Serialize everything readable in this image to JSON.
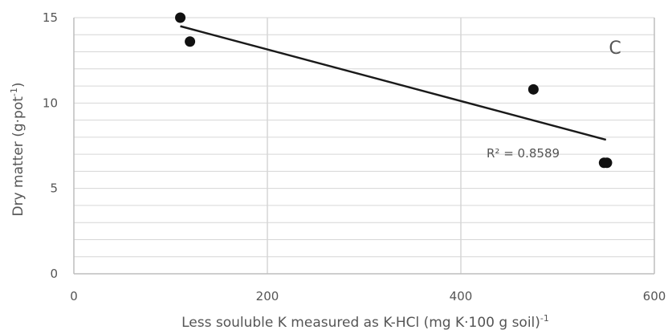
{
  "chart_data": {
    "type": "scatter",
    "panel_label": "C",
    "xlabel": "Less souluble K measured as K-HCl (mg K·100 g soil)",
    "xlabel_sup": "-1",
    "ylabel": "Dry matter (g·pot",
    "ylabel_sup": "-1",
    "ylabel_close": ")",
    "xlim": [
      0,
      600
    ],
    "ylim": [
      0,
      15
    ],
    "x_ticks": [
      0,
      200,
      400,
      600
    ],
    "y_ticks": [
      0,
      5,
      10,
      15
    ],
    "x_tick_labels": [
      "0",
      "200",
      "400",
      "600"
    ],
    "y_tick_labels": [
      "0",
      "5",
      "10",
      "15"
    ],
    "points": [
      {
        "x": 110,
        "y": 15.0
      },
      {
        "x": 120,
        "y": 13.6
      },
      {
        "x": 475,
        "y": 10.8
      },
      {
        "x": 548,
        "y": 6.5
      },
      {
        "x": 551,
        "y": 6.5
      }
    ],
    "trendline": {
      "x": [
        110,
        550
      ],
      "y": [
        14.5,
        7.85
      ]
    },
    "r2_label": "R² = 0.8589",
    "vertical_grid_major": [
      200,
      400
    ],
    "horizontal_grid_step": 1,
    "colors": {
      "points": "#111111",
      "trendline": "#1a1a1a",
      "grid": "#d6d6d6",
      "axis": "#bdbdbd",
      "text": "#555555"
    }
  }
}
